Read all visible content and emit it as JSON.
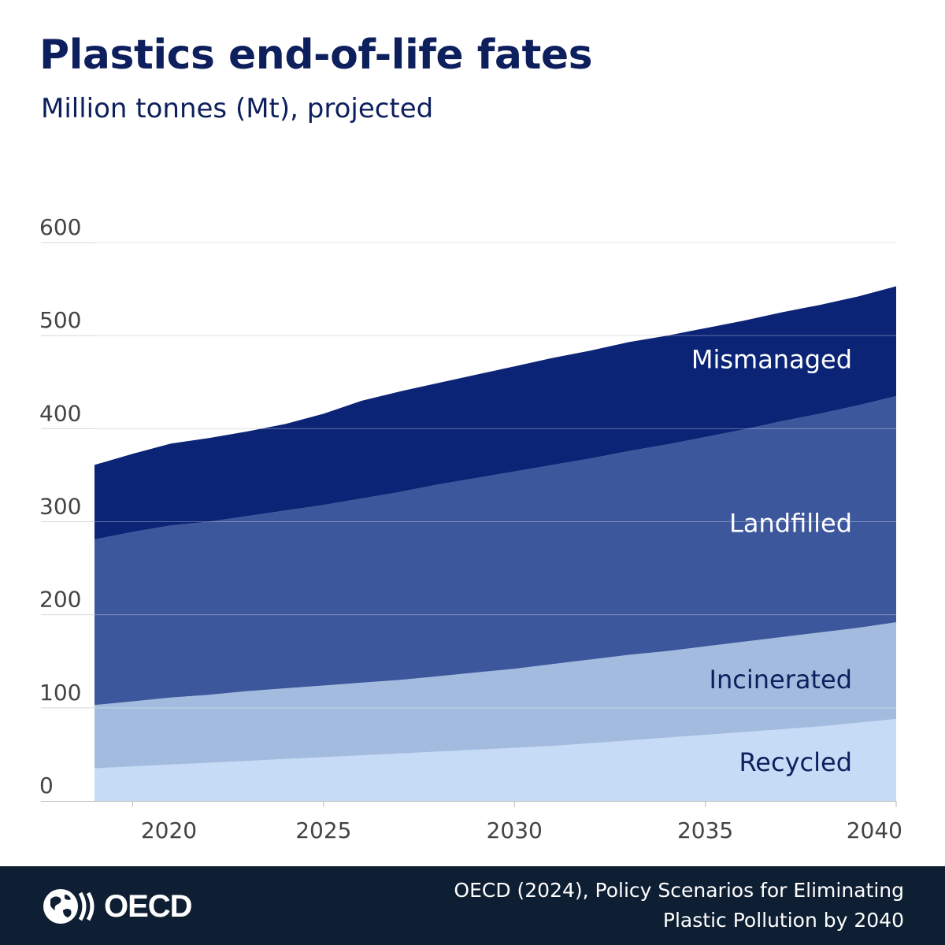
{
  "title": "Plastics end-of-life fates",
  "subtitle": "Million tonnes (Mt), projected",
  "logo": {
    "text": "OECD",
    "icon": "oecd-globe-icon"
  },
  "source": {
    "line1": "OECD (2024), Policy Scenarios for Eliminating",
    "line2": "Plastic Pollution by 2040"
  },
  "colors": {
    "title": "#0d1f5c",
    "footer": "#0e1e33"
  },
  "chart_data": {
    "type": "area",
    "stacked": true,
    "x": [
      2019,
      2020,
      2021,
      2022,
      2023,
      2024,
      2025,
      2026,
      2027,
      2028,
      2029,
      2030,
      2031,
      2032,
      2033,
      2034,
      2035,
      2036,
      2037,
      2038,
      2039,
      2040
    ],
    "series": [
      {
        "name": "Recycled",
        "color": "#c5dbf6",
        "label_color": "#0d1f5c",
        "values": [
          35,
          37,
          39,
          41,
          43,
          45,
          47,
          49,
          51,
          53,
          55,
          57,
          59,
          62,
          65,
          68,
          71,
          74,
          77,
          80,
          84,
          88
        ]
      },
      {
        "name": "Incinerated",
        "color": "#a3bbde",
        "label_color": "#0d1f5c",
        "values": [
          68,
          70,
          72,
          73,
          75,
          76,
          77,
          78,
          79,
          81,
          83,
          85,
          88,
          90,
          92,
          93,
          95,
          97,
          99,
          101,
          102,
          104
        ]
      },
      {
        "name": "Landfilled",
        "color": "#3d579c",
        "label_color": "#ffffff",
        "values": [
          178,
          182,
          185,
          186,
          188,
          191,
          194,
          198,
          202,
          206,
          209,
          212,
          214,
          216,
          219,
          222,
          225,
          228,
          232,
          235,
          239,
          243
        ]
      },
      {
        "name": "Mismanaged",
        "color": "#0b2476",
        "label_color": "#ffffff",
        "values": [
          80,
          84,
          88,
          90,
          91,
          93,
          98,
          105,
          108,
          109,
          111,
          113,
          115,
          116,
          117,
          117,
          117,
          117,
          117,
          117,
          117,
          118
        ]
      }
    ],
    "yticks": [
      0,
      100,
      200,
      300,
      400,
      500,
      600
    ],
    "xticks": [
      2020,
      2025,
      2030,
      2035,
      2040
    ],
    "xlim": [
      2019,
      2040
    ],
    "ylim": [
      0,
      620
    ],
    "grid": true,
    "legend": "inline-right"
  }
}
